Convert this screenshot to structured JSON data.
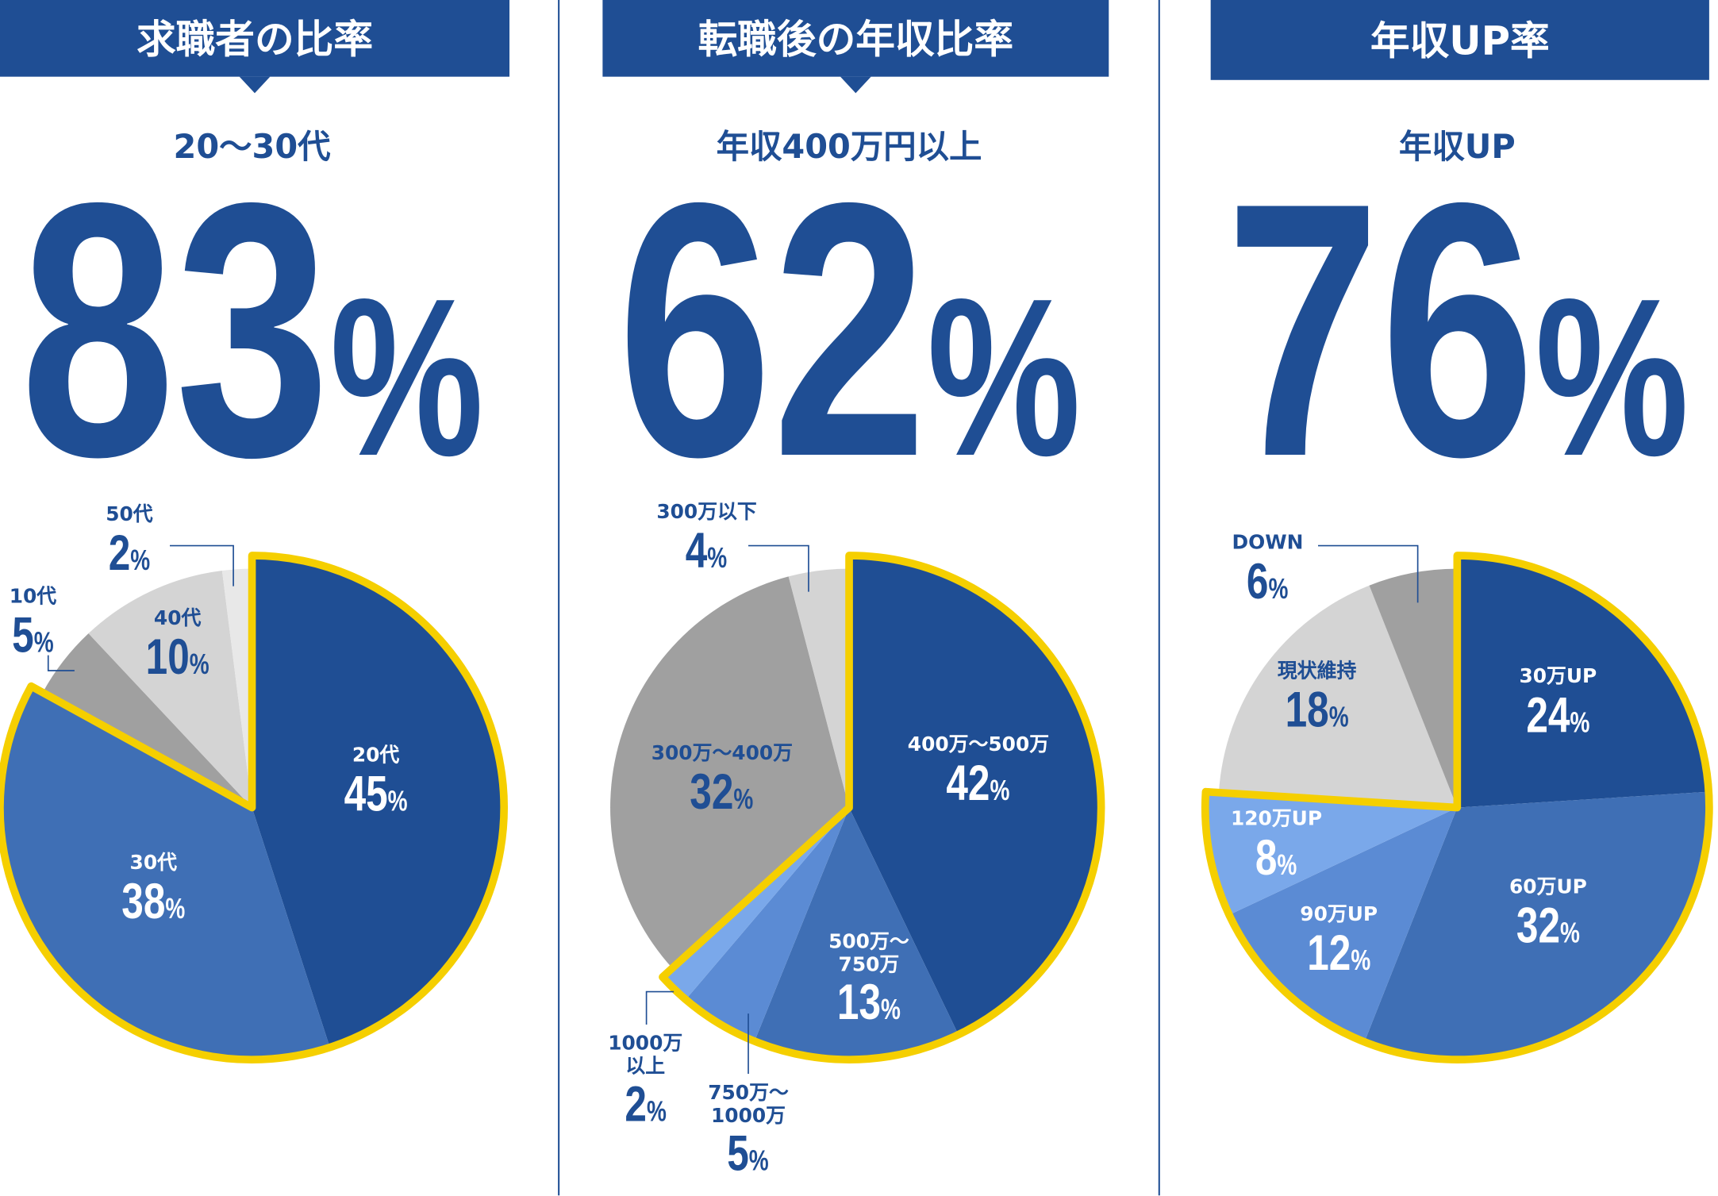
{
  "chart_data": [
    {
      "type": "pie",
      "title": "求職者の比率",
      "subtitle": "20～30代",
      "headline": 83,
      "unit": "%",
      "categories": [
        "20代",
        "30代",
        "10代",
        "40代",
        "50代"
      ],
      "values": [
        45,
        38,
        5,
        10,
        2
      ],
      "colors": [
        "#1f4e94",
        "#3f6fb5",
        "#a0a0a0",
        "#d4d4d4",
        "#e8e8e8"
      ],
      "highlight": [
        true,
        true,
        false,
        false,
        false
      ]
    },
    {
      "type": "pie",
      "title": "転職後の年収比率",
      "subtitle": "年収400万円以上",
      "headline": 62,
      "unit": "%",
      "categories": [
        "400万～500万",
        "500万～\n750万",
        "750万～\n1000万",
        "1000万\n以上",
        "300万～400万",
        "300万以下"
      ],
      "values": [
        42,
        13,
        5,
        2,
        32,
        4
      ],
      "colors": [
        "#1f4e94",
        "#3f6fb5",
        "#5b8bd4",
        "#7aa8ea",
        "#a0a0a0",
        "#d4d4d4"
      ],
      "highlight": [
        true,
        true,
        true,
        true,
        false,
        false
      ]
    },
    {
      "type": "pie",
      "title": "年収UP率",
      "subtitle": "年収UP",
      "headline": 76,
      "unit": "%",
      "categories": [
        "30万UP",
        "60万UP",
        "90万UP",
        "120万UP",
        "現状維持",
        "DOWN"
      ],
      "values": [
        24,
        32,
        12,
        8,
        18,
        6
      ],
      "colors": [
        "#1f4e94",
        "#3f6fb5",
        "#5b8bd4",
        "#7aa8ea",
        "#d4d4d4",
        "#a0a0a0"
      ],
      "highlight": [
        true,
        true,
        true,
        true,
        false,
        false
      ]
    }
  ]
}
